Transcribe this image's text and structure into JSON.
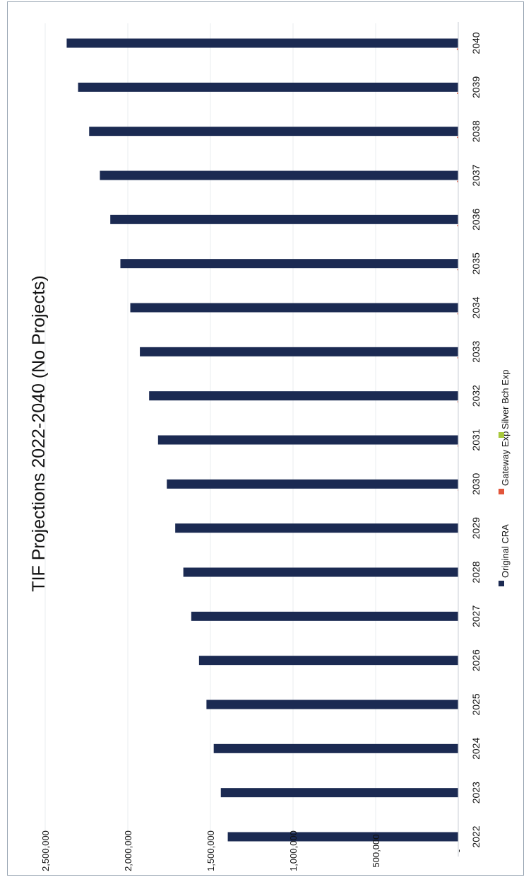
{
  "chart_data": {
    "type": "bar",
    "orientation": "horizontal",
    "title": "TIF Projections 2022-2040 (No Projects)",
    "categories": [
      "2022",
      "2023",
      "2024",
      "2025",
      "2026",
      "2027",
      "2028",
      "2029",
      "2030",
      "2031",
      "2032",
      "2033",
      "2034",
      "2035",
      "2036",
      "2037",
      "2038",
      "2039",
      "2040"
    ],
    "series": [
      {
        "name": "Original CRA",
        "color": "#1b2a52",
        "values": [
          1395000,
          1437000,
          1480000,
          1524000,
          1569000,
          1616000,
          1664000,
          1713000,
          1764000,
          1817000,
          1871000,
          1927000,
          1985000,
          2045000,
          2106000,
          2169000,
          2234000,
          2301000,
          2370000
        ]
      },
      {
        "name": "Gateway Exp",
        "color": "#e2553a",
        "values": [
          0,
          0,
          0,
          0,
          0,
          0,
          1500,
          2500,
          3500,
          4500,
          5000,
          5500,
          6000,
          6500,
          7000,
          7500,
          8000,
          8500,
          9000
        ]
      },
      {
        "name": "Silver Bch Exp",
        "color": "#a8c83c",
        "values": [
          0,
          0,
          0,
          0,
          0,
          0,
          0,
          0,
          0,
          0,
          0,
          0,
          0,
          0,
          0,
          0,
          0,
          1500,
          2500
        ]
      }
    ],
    "value_ticks": [
      {
        "value": 0,
        "label": "-"
      },
      {
        "value": 500000,
        "label": "500,000"
      },
      {
        "value": 1000000,
        "label": "1,000,000"
      },
      {
        "value": 1500000,
        "label": "1,500,000"
      },
      {
        "value": 2000000,
        "label": "2,000,000"
      },
      {
        "value": 2500000,
        "label": "2,500,000"
      }
    ],
    "xlim": [
      0,
      2500000
    ],
    "grid": true,
    "legend_position": "bottom",
    "xlabel": "",
    "ylabel": ""
  }
}
